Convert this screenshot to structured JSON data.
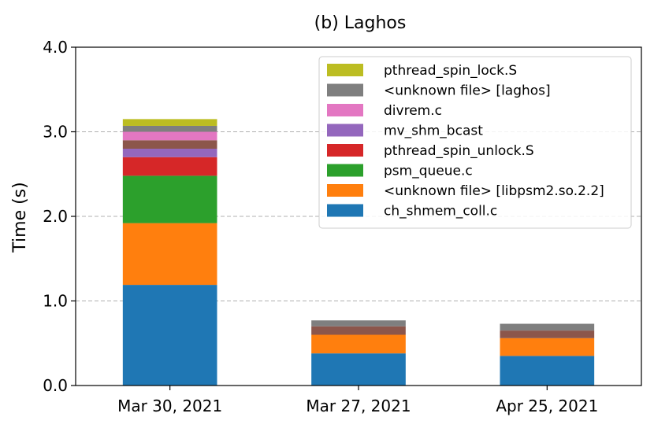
{
  "chart_data": {
    "type": "bar",
    "stacked": true,
    "title": "(b) Laghos",
    "xlabel": "",
    "ylabel": "Time (s)",
    "ylim": [
      0,
      4.0
    ],
    "yticks": [
      "0.0",
      "1.0",
      "2.0",
      "3.0",
      "4.0"
    ],
    "grid": "horizontal-dashed",
    "legend_position": "top-right",
    "categories": [
      "Mar 30, 2021",
      "Mar 27, 2021",
      "Apr 25, 2021"
    ],
    "series": [
      {
        "name": "ch_shmem_coll.c",
        "color": "#1f77b4",
        "values": [
          1.19,
          0.38,
          0.35
        ]
      },
      {
        "name": "<unknown file> [libpsm2.so.2.2]",
        "color": "#ff7f0e",
        "values": [
          0.73,
          0.22,
          0.21
        ]
      },
      {
        "name": "psm_queue.c",
        "color": "#2ca02c",
        "values": [
          0.56,
          0,
          0
        ]
      },
      {
        "name": "pthread_spin_unlock.S",
        "color": "#d62728",
        "values": [
          0.22,
          0,
          0
        ]
      },
      {
        "name": "mv_shm_bcast",
        "color": "#9467bd",
        "values": [
          0.1,
          0,
          0
        ]
      },
      {
        "name": "",
        "color": "#8c564b",
        "values": [
          0.1,
          0.1,
          0.09
        ]
      },
      {
        "name": "divrem.c",
        "color": "#e377c2",
        "values": [
          0.1,
          0,
          0
        ]
      },
      {
        "name": "<unknown file> [laghos]",
        "color": "#7f7f7f",
        "values": [
          0.07,
          0.07,
          0.08
        ]
      },
      {
        "name": "pthread_spin_lock.S",
        "color": "#bcbd22",
        "values": [
          0.08,
          0,
          0
        ]
      }
    ],
    "legend_order": [
      8,
      7,
      6,
      4,
      3,
      2,
      1,
      0
    ]
  }
}
